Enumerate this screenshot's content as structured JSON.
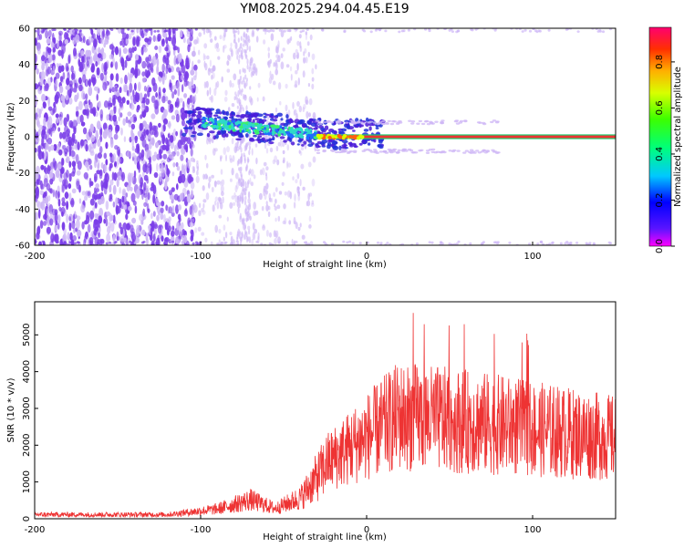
{
  "title": "YM08.2025.294.04.45.E19",
  "colors": {
    "noise": "#7b3ee8",
    "noise_light": "#cdb6f6",
    "trace": "#2fd8c8",
    "carrier": "#ee3333",
    "snr_line": "#ee3333"
  },
  "chart_data": [
    {
      "type": "heatmap",
      "xlabel": "Height of straight line (km)",
      "ylabel": "Frequency (Hz)",
      "xlim": [
        -200,
        150
      ],
      "ylim": [
        -60,
        60
      ],
      "xticks": [
        -200,
        -100,
        0,
        100
      ],
      "yticks": [
        -60,
        -40,
        -20,
        0,
        20,
        40,
        60
      ],
      "colorbar": {
        "label": "Normalized spectral amplitude",
        "range": [
          0.0,
          0.95
        ],
        "ticks": [
          0.0,
          0.2,
          0.4,
          0.6,
          0.8
        ]
      }
    },
    {
      "type": "line",
      "xlabel": "Height of straight line (km)",
      "ylabel": "SNR (10 * v/v)",
      "xlim": [
        -200,
        150
      ],
      "ylim": [
        0,
        5900
      ],
      "xticks": [
        -200,
        -100,
        0,
        100
      ],
      "yticks": [
        0,
        1000,
        2000,
        3000,
        4000,
        5000
      ]
    }
  ]
}
